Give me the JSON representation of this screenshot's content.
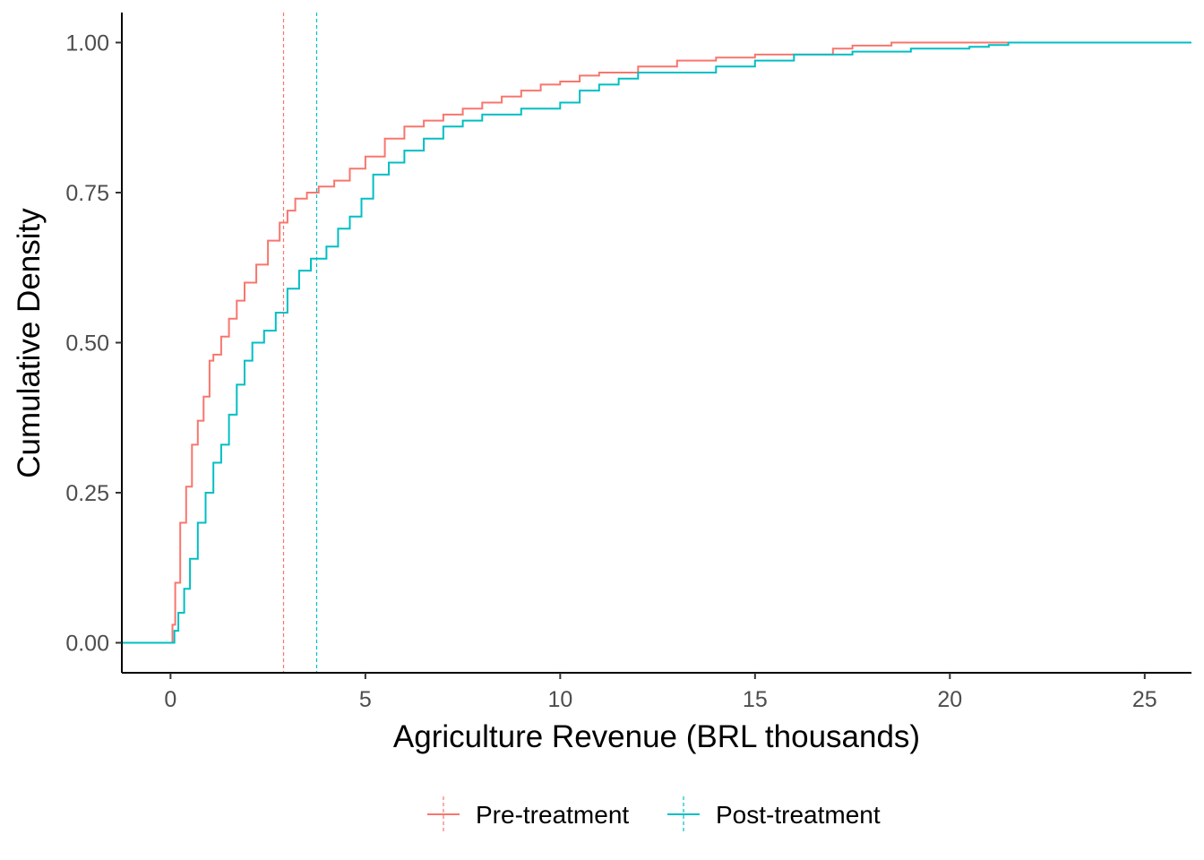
{
  "chart_data": {
    "type": "line",
    "subtype": "ecdf-step",
    "title": "",
    "xlabel": "Agriculture Revenue (BRL thousands)",
    "ylabel": "Cumulative Density",
    "xlim": [
      -1.25,
      26.2
    ],
    "ylim": [
      -0.05,
      1.05
    ],
    "x_ticks": [
      0,
      5,
      10,
      15,
      20,
      25
    ],
    "x_tick_labels": [
      "0",
      "5",
      "10",
      "15",
      "20",
      "25"
    ],
    "y_ticks": [
      0,
      0.25,
      0.5,
      0.75,
      1.0
    ],
    "y_tick_labels": [
      "0.00",
      "0.25",
      "0.50",
      "0.75",
      "1.00"
    ],
    "grid": false,
    "legend_position": "bottom",
    "series": [
      {
        "name": "Pre-treatment",
        "color": "#F8766D",
        "mean_line_x": 2.9,
        "x": [
          -1.25,
          0.0,
          0.05,
          0.12,
          0.25,
          0.4,
          0.55,
          0.7,
          0.85,
          1.0,
          1.1,
          1.3,
          1.5,
          1.7,
          1.9,
          2.2,
          2.5,
          2.8,
          3.0,
          3.2,
          3.5,
          3.8,
          4.2,
          4.6,
          5.0,
          5.5,
          6.0,
          6.5,
          7.0,
          7.5,
          8.0,
          8.5,
          9.0,
          9.5,
          10.0,
          10.5,
          11.0,
          12.0,
          13.0,
          14.0,
          15.0,
          16.0,
          17.0,
          17.5,
          18.5,
          19.0,
          20.0,
          21.0,
          21.5,
          22.0,
          26.2
        ],
        "y": [
          0.0,
          0.0,
          0.03,
          0.1,
          0.2,
          0.26,
          0.33,
          0.37,
          0.41,
          0.47,
          0.48,
          0.51,
          0.54,
          0.57,
          0.6,
          0.63,
          0.67,
          0.7,
          0.72,
          0.74,
          0.75,
          0.76,
          0.77,
          0.79,
          0.81,
          0.84,
          0.86,
          0.87,
          0.88,
          0.89,
          0.9,
          0.91,
          0.92,
          0.93,
          0.935,
          0.945,
          0.95,
          0.96,
          0.97,
          0.975,
          0.98,
          0.98,
          0.99,
          0.995,
          1.0,
          1.0,
          1.0,
          1.0,
          1.0,
          1.0,
          1.0
        ]
      },
      {
        "name": "Post-treatment",
        "color": "#00BFC4",
        "mean_line_x": 3.75,
        "x": [
          -1.25,
          0.0,
          0.1,
          0.2,
          0.35,
          0.5,
          0.7,
          0.9,
          1.1,
          1.3,
          1.5,
          1.7,
          1.9,
          2.1,
          2.4,
          2.7,
          3.0,
          3.3,
          3.6,
          4.0,
          4.3,
          4.6,
          4.9,
          5.2,
          5.6,
          6.0,
          6.5,
          7.0,
          7.5,
          8.0,
          9.0,
          10.0,
          10.5,
          11.0,
          11.5,
          12.0,
          13.0,
          14.0,
          15.0,
          16.0,
          17.5,
          18.0,
          19.0,
          20.0,
          20.5,
          21.0,
          21.5,
          22.0,
          26.2
        ],
        "y": [
          0.0,
          0.0,
          0.02,
          0.05,
          0.09,
          0.14,
          0.2,
          0.25,
          0.3,
          0.33,
          0.38,
          0.43,
          0.47,
          0.5,
          0.52,
          0.55,
          0.59,
          0.62,
          0.64,
          0.66,
          0.69,
          0.71,
          0.74,
          0.78,
          0.8,
          0.82,
          0.84,
          0.86,
          0.87,
          0.88,
          0.89,
          0.9,
          0.92,
          0.93,
          0.94,
          0.95,
          0.95,
          0.96,
          0.97,
          0.98,
          0.985,
          0.985,
          0.99,
          0.99,
          0.993,
          0.996,
          1.0,
          1.0,
          1.0
        ]
      }
    ]
  }
}
